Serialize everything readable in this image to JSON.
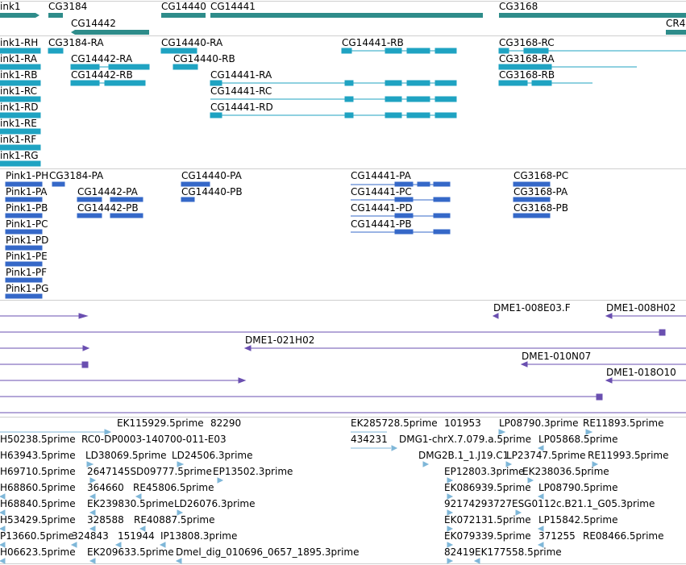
{
  "colors": {
    "gene": "#2e8c8a",
    "transcript": "#1fa3c2",
    "protein": "#3568c8",
    "clone": "#6a4fb0",
    "est": "#7fb7d8"
  },
  "gene_track": {
    "labels": [
      "ink1",
      "CG3184",
      "CG14440",
      "CG14441",
      "CG3168",
      "CG14442",
      "CR4"
    ]
  },
  "transcript_track": {
    "labels": [
      "ink1-RH",
      "CG3184-RA",
      "CG14440-RA",
      "CG14441-RB",
      "CG3168-RC",
      "ink1-RA",
      "CG14442-RA",
      "CG14440-RB",
      "CG3168-RA",
      "ink1-RB",
      "CG14442-RB",
      "CG14441-RA",
      "CG3168-RB",
      "ink1-RC",
      "CG14441-RC",
      "ink1-RD",
      "CG14441-RD",
      "ink1-RE",
      "ink1-RF",
      "ink1-RG"
    ]
  },
  "protein_track": {
    "labels": [
      "Pink1-PH",
      "CG3184-PA",
      "CG14440-PA",
      "CG14441-PA",
      "CG3168-PC",
      "Pink1-PA",
      "CG14442-PA",
      "CG14440-PB",
      "CG14441-PC",
      "CG3168-PA",
      "Pink1-PB",
      "CG14442-PB",
      "CG14441-PD",
      "CG3168-PB",
      "Pink1-PC",
      "CG14441-PB",
      "Pink1-PD",
      "Pink1-PE",
      "Pink1-PF",
      "Pink1-PG"
    ]
  },
  "clone_track": {
    "labels": [
      "DME1-008E03.F",
      "DME1-008H02",
      "DME1-021H02",
      "DME1-010N07",
      "DME1-018O10"
    ]
  },
  "est_track": {
    "labels": [
      "EK115929.5prime",
      "82290",
      "EK285728.5prime",
      "101953",
      "LP08790.3prime",
      "RE11893.5prime",
      "H50238.5prime",
      "RC0-DP0003-140700-011-E03",
      "434231",
      "DMG1-chrX.7.079.a.5prime",
      "LP05868.5prime",
      "H63943.5prime",
      "LD38069.5prime",
      "LD24506.3prime",
      "DMG2B.1_1.J19.C1",
      "LP23747.5prime",
      "RE11993.5prime",
      "H69710.5prime",
      "2647145SD09777.5prime",
      "EP13502.3prime",
      "EP12803.3prime",
      "EK238036.5prime",
      "H68860.5prime",
      "364660",
      "RE45806.5prime",
      "EK086939.5prime",
      "LP08790.5prime",
      "H68840.5prime",
      "EK239830.5prime",
      "LD26076.3prime",
      "92174293727ESG0112c.B21.1_G05.3prime",
      "H53429.5prime",
      "328588",
      "RE40887.5prime",
      "EK072131.5prime",
      "LP15842.5prime",
      "P13660.5prime",
      "324843",
      "151944",
      "IP13808.3prime",
      "EK079339.5prime",
      "371255",
      "RE08466.5prime",
      "H06623.5prime",
      "EK209633.5prime",
      "Dmel_dig_010696_0657_1895.3prime",
      "82419",
      "EK177558.5prime"
    ]
  }
}
